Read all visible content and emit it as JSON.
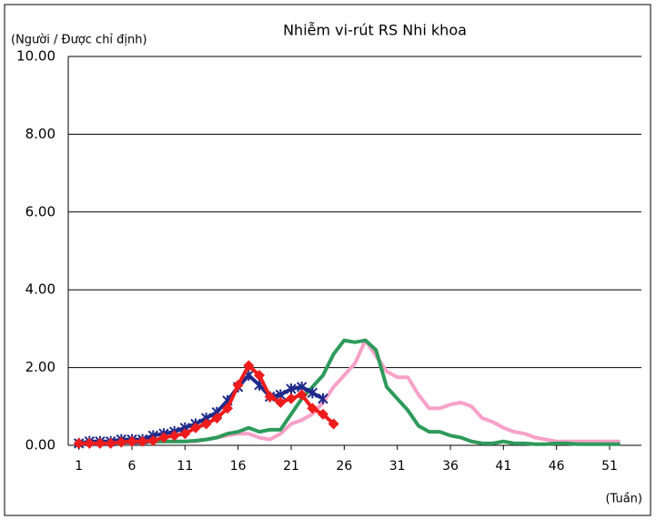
{
  "chart_data": {
    "type": "line",
    "title": "Nhiễm vi-rút RS Nhi khoa",
    "y_label": "(Người / Được chỉ định)",
    "x_label": "(Tuần)",
    "x": [
      1,
      2,
      3,
      4,
      5,
      6,
      7,
      8,
      9,
      10,
      11,
      12,
      13,
      14,
      15,
      16,
      17,
      18,
      19,
      20,
      21,
      22,
      23,
      24,
      25,
      26,
      27,
      28,
      29,
      30,
      31,
      32,
      33,
      34,
      35,
      36,
      37,
      38,
      39,
      40,
      41,
      42,
      43,
      44,
      45,
      46,
      47,
      48,
      49,
      50,
      51,
      52
    ],
    "xlim": [
      0,
      54
    ],
    "xticks": [
      1,
      6,
      11,
      16,
      21,
      26,
      31,
      36,
      41,
      46,
      51
    ],
    "ylim": [
      0,
      10
    ],
    "yticks": [
      {
        "value": 0,
        "label": "0.00"
      },
      {
        "value": 2,
        "label": "2.00"
      },
      {
        "value": 4,
        "label": "4.00"
      },
      {
        "value": 6,
        "label": "6.00"
      },
      {
        "value": 8,
        "label": "8.00"
      },
      {
        "value": 10,
        "label": "10.00"
      }
    ],
    "grid": true,
    "series": [
      {
        "color": "#f7a1c8",
        "marker": "none",
        "values": [
          0.05,
          0.05,
          0.05,
          0.05,
          0.05,
          0.05,
          0.08,
          0.08,
          0.1,
          0.1,
          0.1,
          0.1,
          0.15,
          0.2,
          0.25,
          0.3,
          0.3,
          0.2,
          0.15,
          0.3,
          0.55,
          0.65,
          0.8,
          1.1,
          1.5,
          1.8,
          2.1,
          2.7,
          2.3,
          1.9,
          1.75,
          1.75,
          1.3,
          0.95,
          0.95,
          1.05,
          1.1,
          1.0,
          0.7,
          0.6,
          0.45,
          0.35,
          0.3,
          0.2,
          0.15,
          0.1,
          0.1,
          0.1,
          0.1,
          0.1,
          0.1,
          0.1
        ]
      },
      {
        "color": "#2e9a5b",
        "marker": "none",
        "values": [
          0.05,
          0.05,
          0.05,
          0.05,
          0.05,
          0.08,
          0.08,
          0.1,
          0.1,
          0.1,
          0.1,
          0.12,
          0.15,
          0.2,
          0.3,
          0.35,
          0.45,
          0.35,
          0.4,
          0.4,
          0.8,
          1.2,
          1.5,
          1.8,
          2.35,
          2.7,
          2.65,
          2.7,
          2.45,
          1.5,
          1.2,
          0.9,
          0.5,
          0.35,
          0.35,
          0.25,
          0.2,
          0.1,
          0.05,
          0.05,
          0.1,
          0.05,
          0.05,
          0.03,
          0.03,
          0.05,
          0.05,
          0.03,
          0.03,
          0.03,
          0.03,
          0.03
        ]
      },
      {
        "color": "#1f2a8a",
        "marker": "star",
        "values": [
          0.05,
          0.1,
          0.1,
          0.1,
          0.15,
          0.15,
          0.15,
          0.25,
          0.3,
          0.35,
          0.45,
          0.55,
          0.7,
          0.85,
          1.15,
          1.5,
          1.8,
          1.55,
          1.25,
          1.3,
          1.45,
          1.5,
          1.35,
          1.2,
          null,
          null,
          null,
          null,
          null,
          null,
          null,
          null,
          null,
          null,
          null,
          null,
          null,
          null,
          null,
          null,
          null,
          null,
          null,
          null,
          null,
          null,
          null,
          null,
          null,
          null,
          null,
          null
        ]
      },
      {
        "color": "#ee1c1c",
        "marker": "diamond",
        "values": [
          0.05,
          0.05,
          0.05,
          0.05,
          0.08,
          0.1,
          0.1,
          0.12,
          0.2,
          0.25,
          0.3,
          0.45,
          0.55,
          0.7,
          0.95,
          1.55,
          2.05,
          1.8,
          1.25,
          1.1,
          1.2,
          1.3,
          0.95,
          0.8,
          0.55,
          null,
          null,
          null,
          null,
          null,
          null,
          null,
          null,
          null,
          null,
          null,
          null,
          null,
          null,
          null,
          null,
          null,
          null,
          null,
          null,
          null,
          null,
          null,
          null,
          null,
          null,
          null
        ]
      }
    ]
  }
}
